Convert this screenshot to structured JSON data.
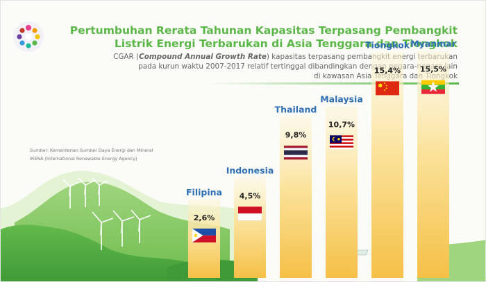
{
  "header": {
    "title_line1": "Pertumbuhan Rerata Tahunan Kapasitas Terpasang Pembangkit",
    "title_line2": "Listrik Energi Terbarukan di Asia Tenggara dan Tiongkok",
    "subtitle_prefix": "CGAR (",
    "subtitle_emphasis": "Compound Annual Growth Rate",
    "subtitle_rest": ") kapasitas terpasang pembangkit energi terbarukan",
    "subtitle_line2": "pada kurun waktu 2007-2017 relatif tertinggal dibandingkan dengan negara-negara lain",
    "subtitle_line3": "di kawasan Asia Tenggara dan Tiongkok"
  },
  "source": {
    "line1": "Sumber: Kementerian Sumber Daya Energi dan Mineral",
    "line2": "IRENA (International Renewable Energy Agency)"
  },
  "colors": {
    "accent_green": "#5bb748",
    "country_blue": "#2e6fb3",
    "bar_top": "#fdf3cf",
    "bar_bottom": "#f7c64a"
  },
  "chart_data": {
    "type": "bar",
    "categories": [
      "Filipina",
      "Indonesia",
      "Thailand",
      "Malaysia",
      "Tiongkok",
      "Myanmar"
    ],
    "values": [
      2.6,
      4.5,
      9.8,
      10.7,
      15.4,
      15.5
    ],
    "value_labels": [
      "2,6%",
      "4,5%",
      "9,8%",
      "10,7%",
      "15,4%",
      "15,5%"
    ],
    "flags": [
      "philippines-flag",
      "indonesia-flag",
      "thailand-flag",
      "malaysia-flag",
      "china-flag",
      "myanmar-flag"
    ],
    "ylim": [
      0,
      16
    ]
  }
}
